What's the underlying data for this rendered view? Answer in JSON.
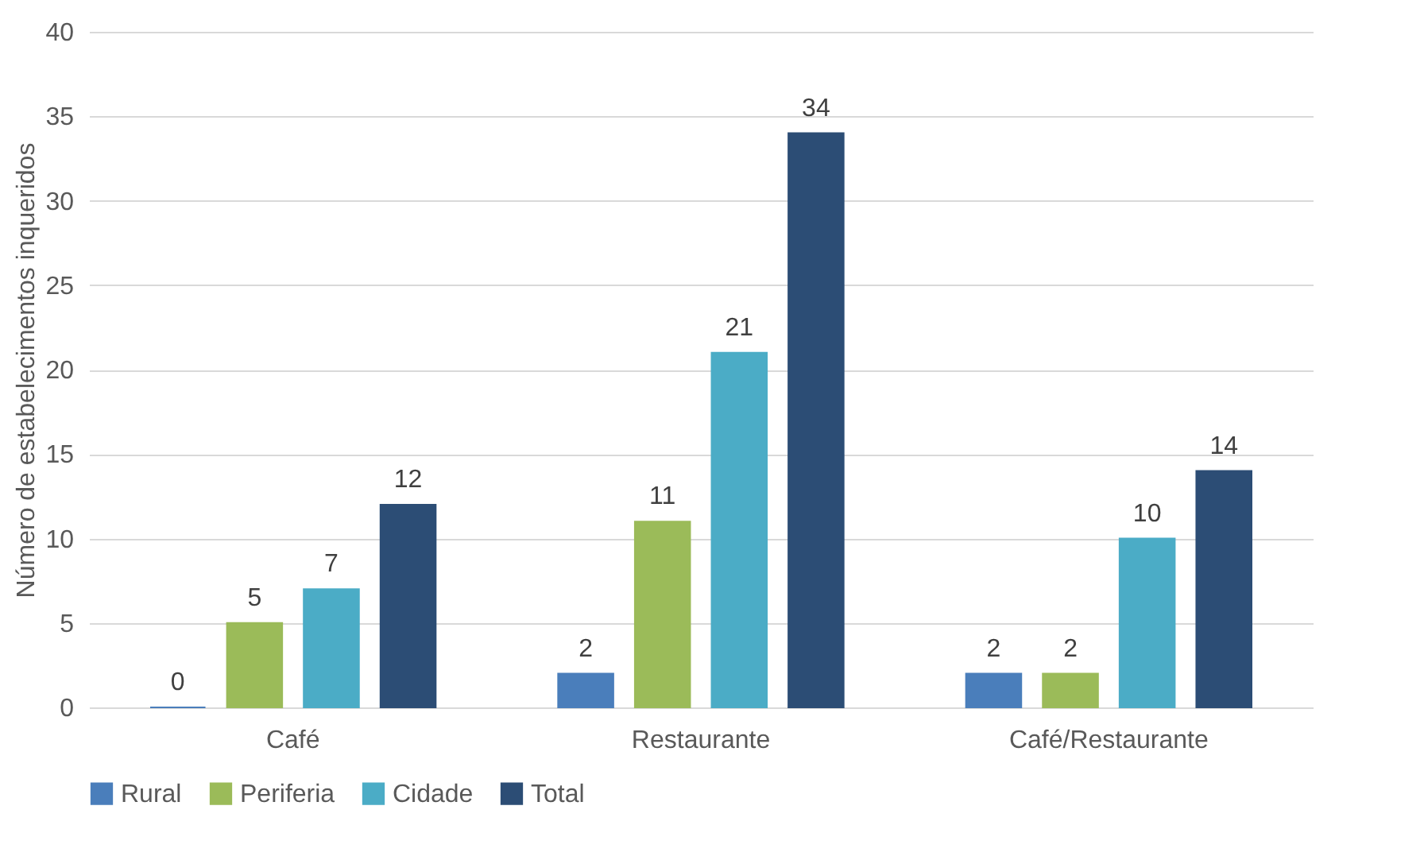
{
  "chart_data": {
    "type": "bar",
    "ylabel": "Número de estabelecimentos inqueridos",
    "categories": [
      "Café",
      "Restaurante",
      "Café/Restaurante"
    ],
    "series": [
      {
        "name": "Rural",
        "color": "#4a7ebb",
        "values": [
          0,
          2,
          2
        ]
      },
      {
        "name": "Periferia",
        "color": "#9bbb59",
        "values": [
          5,
          11,
          2
        ]
      },
      {
        "name": "Cidade",
        "color": "#4bacc6",
        "values": [
          7,
          21,
          10
        ]
      },
      {
        "name": "Total",
        "color": "#2c4d75",
        "values": [
          12,
          34,
          14
        ]
      }
    ],
    "ylim": [
      0,
      40
    ],
    "yticks": [
      0,
      5,
      10,
      15,
      20,
      25,
      30,
      35,
      40
    ],
    "grid": "y",
    "legend": "bottom",
    "data_labels": true
  }
}
